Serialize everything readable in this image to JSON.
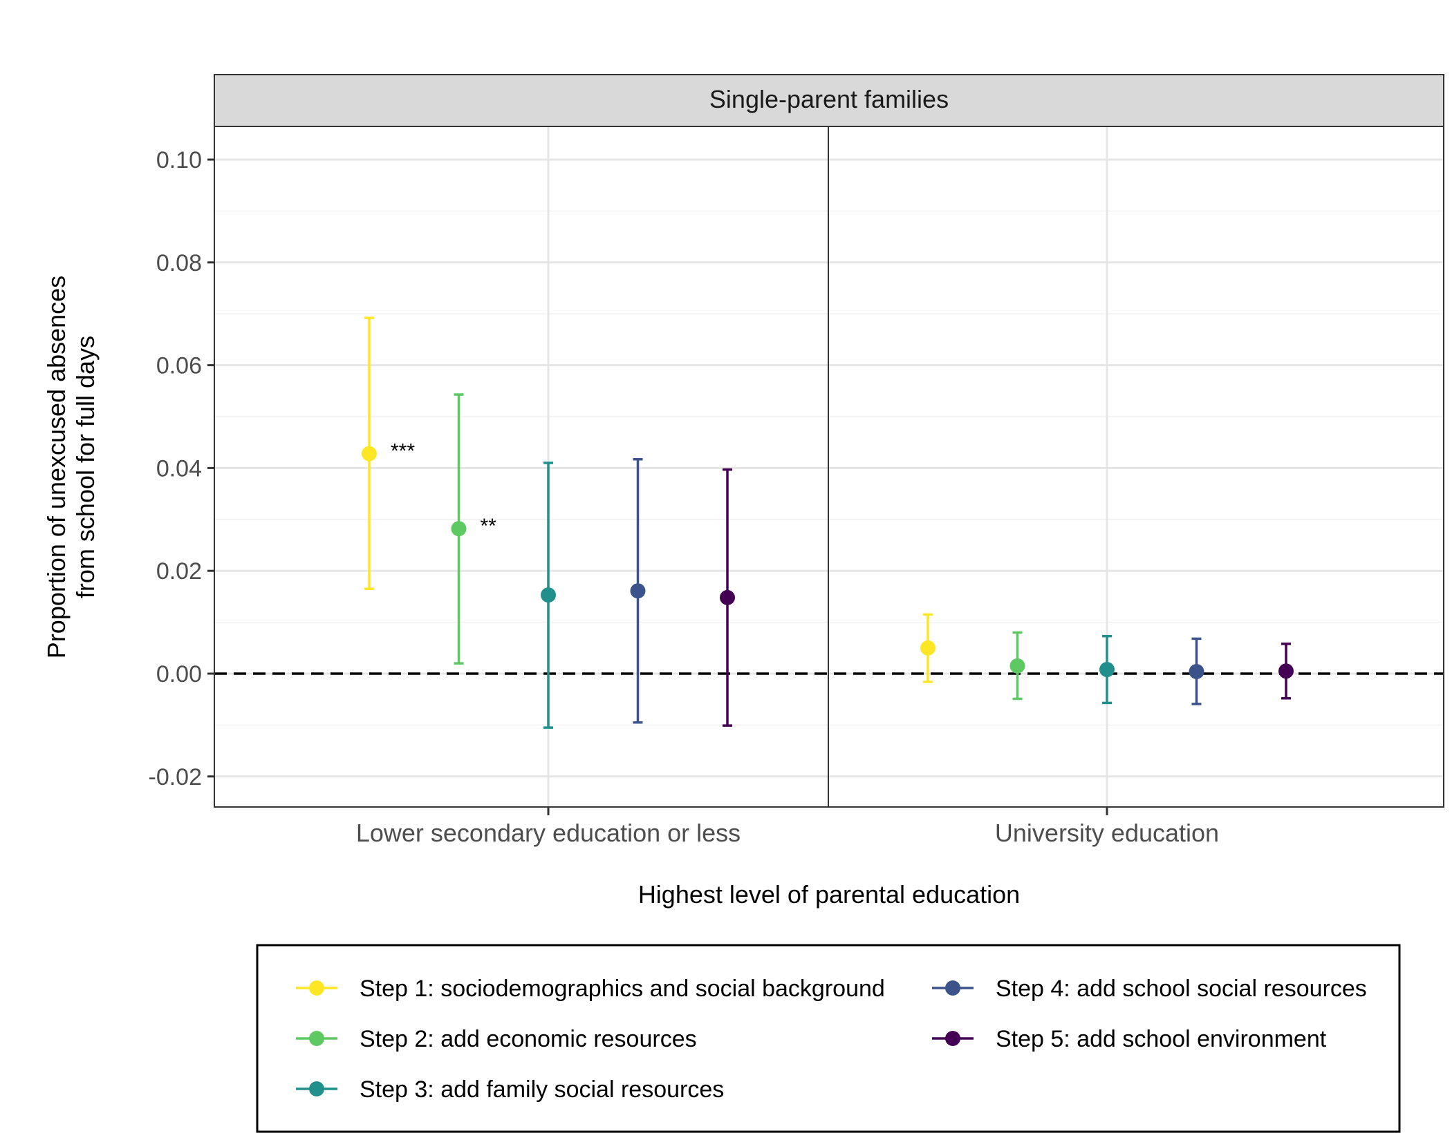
{
  "chart_data": {
    "type": "scatter",
    "subtype": "point-range with confidence intervals",
    "facet_title": "Single-parent families",
    "xlabel": "Highest level of parental education",
    "ylabel_lines": [
      "Proportion of unexcused absences",
      "from school for full days"
    ],
    "categories": [
      "Lower secondary education or less",
      "University education"
    ],
    "ylim": [
      -0.026,
      0.106
    ],
    "yticks": [
      -0.02,
      0.0,
      0.02,
      0.04,
      0.06,
      0.08,
      0.1
    ],
    "ytick_labels": [
      "-0.02",
      "0.00",
      "0.02",
      "0.04",
      "0.06",
      "0.08",
      "0.10"
    ],
    "reference_line": {
      "y": 0,
      "style": "dashed"
    },
    "grid": true,
    "legend_position": "bottom",
    "series": [
      {
        "name": "Step 1: sociodemographics and social background",
        "color": "#FDE725",
        "points": [
          {
            "category": "Lower secondary education or less",
            "estimate": 0.0428,
            "lower": 0.0165,
            "upper": 0.0692,
            "significance": "***"
          },
          {
            "category": "University education",
            "estimate": 0.005,
            "lower": -0.0016,
            "upper": 0.0115,
            "significance": ""
          }
        ]
      },
      {
        "name": "Step 2: add economic resources",
        "color": "#5EC962",
        "points": [
          {
            "category": "Lower secondary education or less",
            "estimate": 0.0282,
            "lower": 0.002,
            "upper": 0.0543,
            "significance": "**"
          },
          {
            "category": "University education",
            "estimate": 0.0015,
            "lower": -0.0049,
            "upper": 0.008,
            "significance": ""
          }
        ]
      },
      {
        "name": "Step 3: add family social resources",
        "color": "#21908C",
        "points": [
          {
            "category": "Lower secondary education or less",
            "estimate": 0.0153,
            "lower": -0.0105,
            "upper": 0.041,
            "significance": ""
          },
          {
            "category": "University education",
            "estimate": 0.0008,
            "lower": -0.0057,
            "upper": 0.0073,
            "significance": ""
          }
        ]
      },
      {
        "name": "Step 4: add school social resources",
        "color": "#3B528B",
        "points": [
          {
            "category": "Lower secondary education or less",
            "estimate": 0.0161,
            "lower": -0.0095,
            "upper": 0.0417,
            "significance": ""
          },
          {
            "category": "University education",
            "estimate": 0.0004,
            "lower": -0.0059,
            "upper": 0.0068,
            "significance": ""
          }
        ]
      },
      {
        "name": "Step 5: add school environment",
        "color": "#440154",
        "points": [
          {
            "category": "Lower secondary education or less",
            "estimate": 0.0148,
            "lower": -0.0101,
            "upper": 0.0397,
            "significance": ""
          },
          {
            "category": "University education",
            "estimate": 0.0005,
            "lower": -0.0048,
            "upper": 0.0058,
            "significance": ""
          }
        ]
      }
    ]
  }
}
